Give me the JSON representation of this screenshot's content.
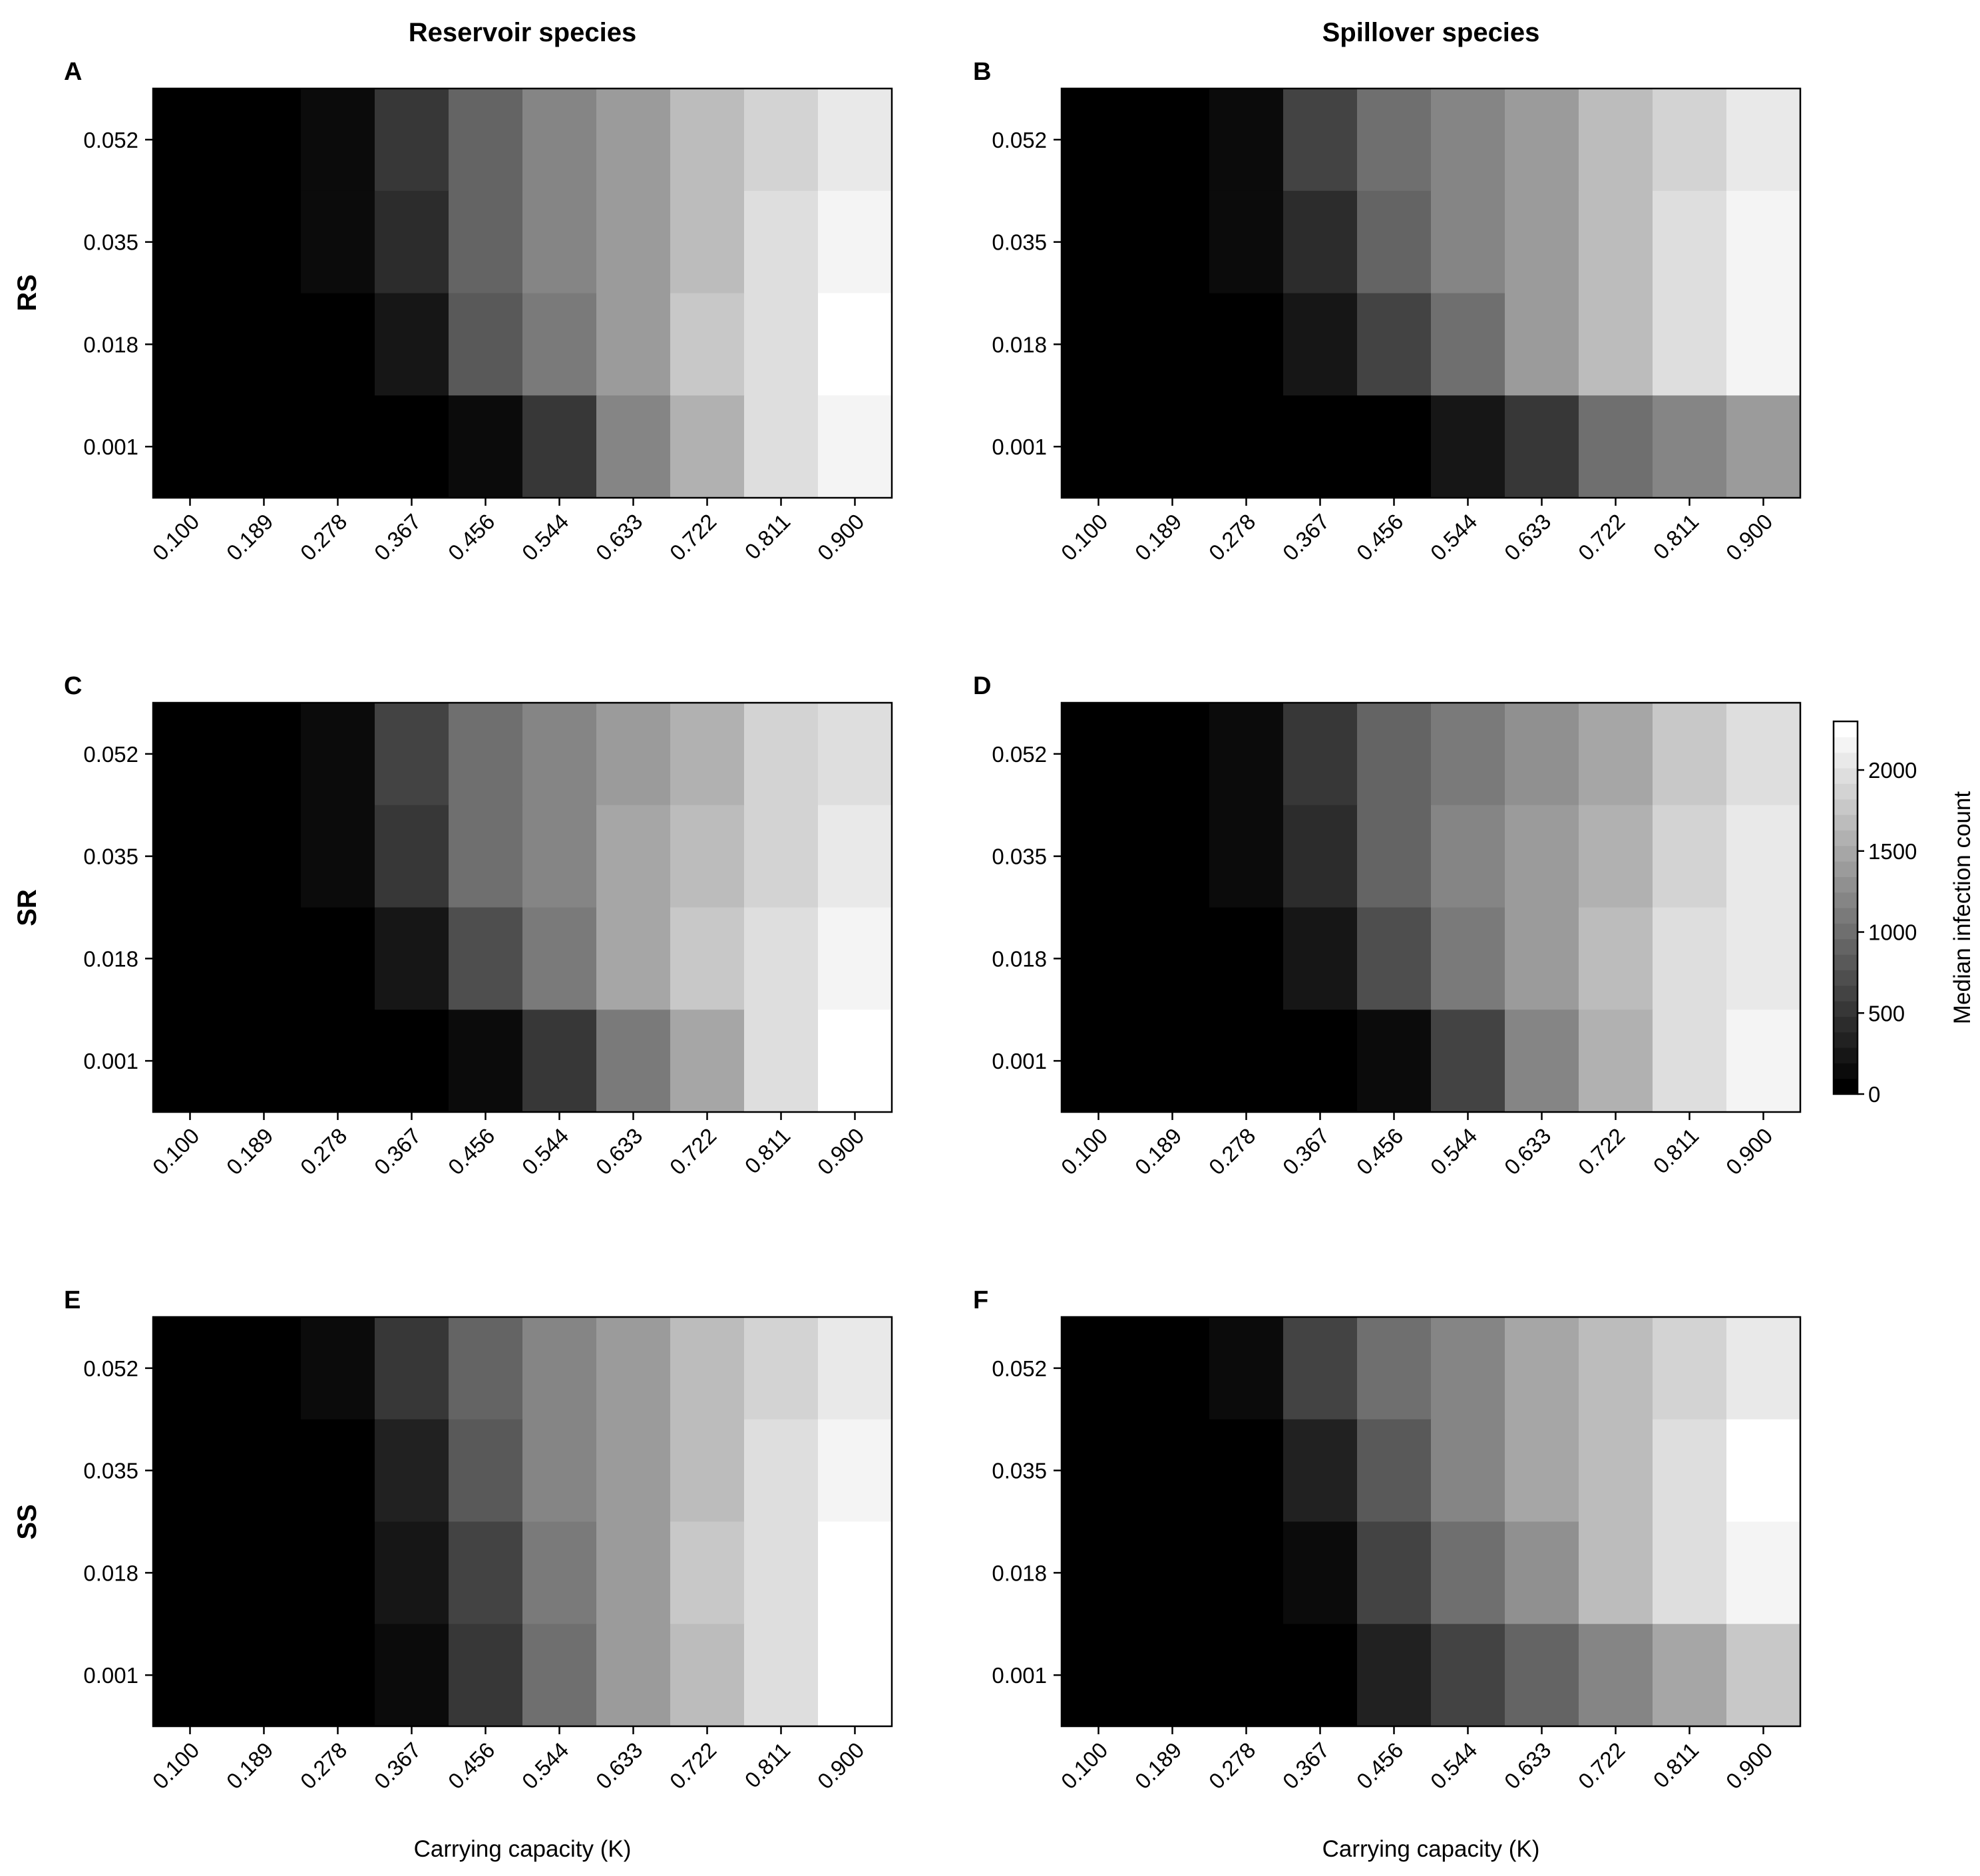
{
  "column_titles": [
    "Reservoir species",
    "Spillover species"
  ],
  "row_labels": [
    "RS",
    "SR",
    "SS"
  ],
  "panel_letters": [
    "A",
    "B",
    "C",
    "D",
    "E",
    "F"
  ],
  "xlabel": "Carrying capacity (K)",
  "colorbar": {
    "label": "Median infection count",
    "ticks": [
      "0",
      "500",
      "1000",
      "1500",
      "2000"
    ],
    "tick_values": [
      0,
      500,
      1000,
      1500,
      2000
    ],
    "range": [
      0,
      2300
    ],
    "color_low": "#000000",
    "color_high": "#ffffff",
    "levels": 24
  },
  "chart_data": [
    {
      "type": "heatmap",
      "panel": "A",
      "row_label": "RS",
      "column": "Reservoir species",
      "xlabel": "",
      "x": [
        "0.100",
        "0.189",
        "0.278",
        "0.367",
        "0.456",
        "0.544",
        "0.633",
        "0.722",
        "0.811",
        "0.900"
      ],
      "y": [
        "0.052",
        "0.035",
        "0.018",
        "0.001"
      ],
      "values": [
        [
          0,
          0,
          100,
          500,
          900,
          1150,
          1350,
          1650,
          1900,
          2100
        ],
        [
          0,
          0,
          50,
          400,
          900,
          1150,
          1400,
          1700,
          1950,
          2150
        ],
        [
          0,
          0,
          0,
          200,
          750,
          1100,
          1400,
          1750,
          2000,
          2250
        ],
        [
          0,
          0,
          0,
          0,
          100,
          500,
          1200,
          1600,
          1950,
          2200
        ]
      ]
    },
    {
      "type": "heatmap",
      "panel": "B",
      "row_label": "RS",
      "column": "Spillover species",
      "xlabel": "",
      "x": [
        "0.100",
        "0.189",
        "0.278",
        "0.367",
        "0.456",
        "0.544",
        "0.633",
        "0.722",
        "0.811",
        "0.900"
      ],
      "y": [
        "0.052",
        "0.035",
        "0.018",
        "0.001"
      ],
      "values": [
        [
          0,
          0,
          100,
          550,
          950,
          1200,
          1400,
          1650,
          1850,
          2050
        ],
        [
          0,
          0,
          50,
          400,
          900,
          1150,
          1400,
          1700,
          1950,
          2150
        ],
        [
          0,
          0,
          0,
          200,
          550,
          950,
          1350,
          1700,
          2000,
          2200
        ],
        [
          0,
          0,
          0,
          0,
          0,
          200,
          500,
          950,
          1200,
          1400
        ]
      ]
    },
    {
      "type": "heatmap",
      "panel": "C",
      "row_label": "SR",
      "column": "Reservoir species",
      "xlabel": "",
      "x": [
        "0.100",
        "0.189",
        "0.278",
        "0.367",
        "0.456",
        "0.544",
        "0.633",
        "0.722",
        "0.811",
        "0.900"
      ],
      "y": [
        "0.052",
        "0.035",
        "0.018",
        "0.001"
      ],
      "values": [
        [
          0,
          0,
          100,
          650,
          950,
          1150,
          1350,
          1600,
          1850,
          2000
        ],
        [
          0,
          0,
          50,
          500,
          950,
          1200,
          1450,
          1700,
          1900,
          2100
        ],
        [
          0,
          0,
          0,
          200,
          700,
          1100,
          1450,
          1750,
          2000,
          2200
        ],
        [
          0,
          0,
          0,
          0,
          100,
          450,
          1050,
          1500,
          1950,
          2300
        ]
      ]
    },
    {
      "type": "heatmap",
      "panel": "D",
      "row_label": "SR",
      "column": "Spillover species",
      "xlabel": "",
      "x": [
        "0.100",
        "0.189",
        "0.278",
        "0.367",
        "0.456",
        "0.544",
        "0.633",
        "0.722",
        "0.811",
        "0.900"
      ],
      "y": [
        "0.052",
        "0.035",
        "0.018",
        "0.001"
      ],
      "values": [
        [
          0,
          0,
          100,
          500,
          850,
          1050,
          1250,
          1500,
          1750,
          2000
        ],
        [
          0,
          0,
          50,
          400,
          850,
          1150,
          1350,
          1600,
          1850,
          2050
        ],
        [
          0,
          0,
          0,
          200,
          700,
          1100,
          1400,
          1700,
          1950,
          2100
        ],
        [
          0,
          0,
          0,
          0,
          100,
          650,
          1200,
          1550,
          1950,
          2200
        ]
      ]
    },
    {
      "type": "heatmap",
      "panel": "E",
      "row_label": "SS",
      "column": "Reservoir species",
      "xlabel": "Carrying capacity (K)",
      "x": [
        "0.100",
        "0.189",
        "0.278",
        "0.367",
        "0.456",
        "0.544",
        "0.633",
        "0.722",
        "0.811",
        "0.900"
      ],
      "y": [
        "0.052",
        "0.035",
        "0.018",
        "0.001"
      ],
      "values": [
        [
          0,
          0,
          100,
          500,
          900,
          1150,
          1400,
          1650,
          1900,
          2100
        ],
        [
          0,
          0,
          0,
          300,
          800,
          1150,
          1400,
          1700,
          1950,
          2150
        ],
        [
          0,
          0,
          0,
          150,
          650,
          1100,
          1400,
          1750,
          2000,
          2250
        ],
        [
          0,
          0,
          0,
          100,
          450,
          950,
          1350,
          1700,
          2000,
          2250
        ]
      ]
    },
    {
      "type": "heatmap",
      "panel": "F",
      "row_label": "SS",
      "column": "Spillover species",
      "xlabel": "Carrying capacity (K)",
      "x": [
        "0.100",
        "0.189",
        "0.278",
        "0.367",
        "0.456",
        "0.544",
        "0.633",
        "0.722",
        "0.811",
        "0.900"
      ],
      "y": [
        "0.052",
        "0.035",
        "0.018",
        "0.001"
      ],
      "values": [
        [
          0,
          0,
          100,
          550,
          950,
          1200,
          1450,
          1650,
          1850,
          2050
        ],
        [
          0,
          0,
          0,
          300,
          800,
          1150,
          1450,
          1700,
          2000,
          2250
        ],
        [
          0,
          0,
          0,
          100,
          550,
          950,
          1300,
          1650,
          1950,
          2150
        ],
        [
          0,
          0,
          0,
          0,
          250,
          550,
          900,
          1150,
          1450,
          1750
        ]
      ]
    }
  ]
}
